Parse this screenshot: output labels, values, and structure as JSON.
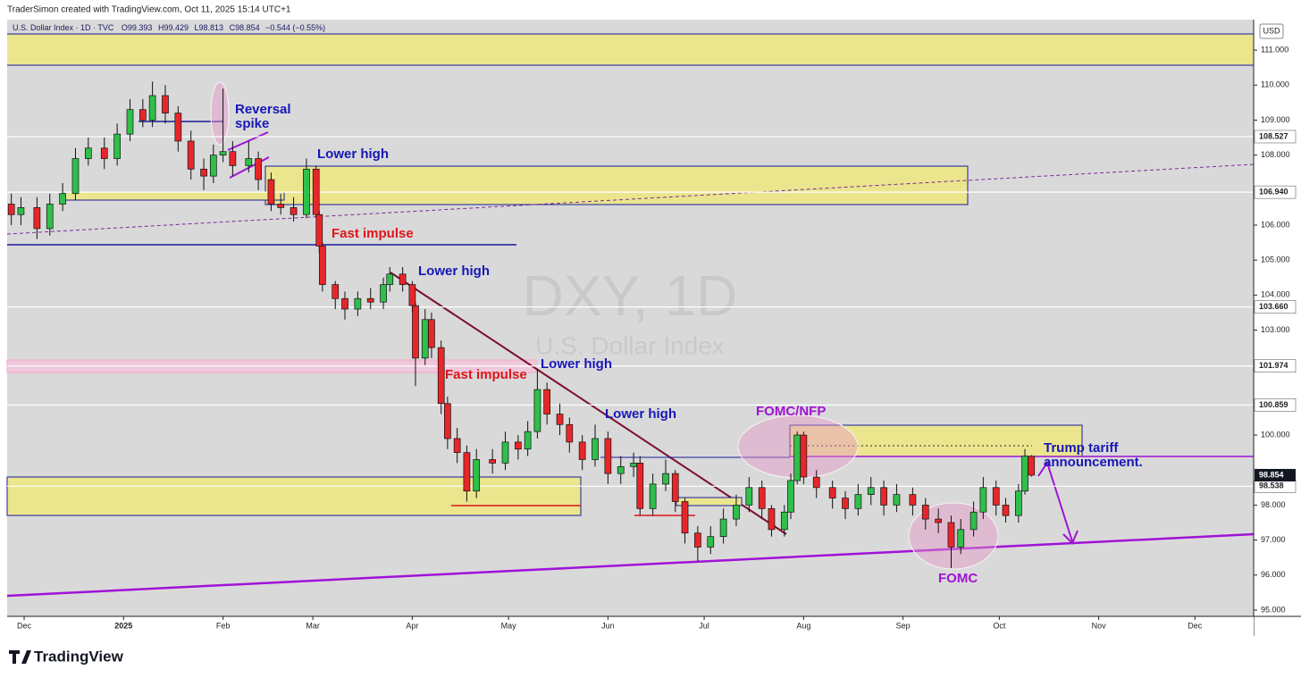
{
  "header": {
    "attribution": "TraderSimon created with TradingView.com, Oct 11, 2025 15:14 UTC+1",
    "logo": "TradingView"
  },
  "chart_data": {
    "type": "candlestick",
    "title": "U.S. Dollar Index · 1D · TVC",
    "legend_letters": [
      "O",
      "H",
      "L",
      "C"
    ],
    "change": "−0.544 (−0.55%)",
    "currency": "USD",
    "watermark": {
      "symbol": "DXY, 1D",
      "name": "U.S. Dollar Index"
    },
    "up_color": "#2fbf4a",
    "down_color": "#e8262a",
    "x": [
      -4,
      -1,
      4,
      8,
      12,
      16,
      20,
      25,
      29,
      33,
      37,
      40,
      44,
      48,
      52,
      56,
      59,
      62,
      65,
      70,
      73,
      77,
      80,
      84,
      88,
      91,
      92,
      93,
      97,
      100,
      104,
      108,
      112,
      114,
      118,
      121,
      122,
      125,
      127,
      130,
      132,
      135,
      138,
      141,
      146,
      150,
      154,
      157,
      160,
      163,
      167,
      170,
      174,
      178,
      182,
      186,
      190,
      192,
      196,
      200,
      203,
      206,
      210,
      214,
      218,
      222,
      226,
      230,
      233,
      237,
      239,
      241,
      243,
      247,
      252,
      256,
      260,
      264,
      268,
      272,
      277,
      281,
      285,
      289,
      292,
      296,
      299,
      303,
      306,
      310,
      312,
      314
    ],
    "open": [
      106.6,
      106.3,
      106.5,
      105.9,
      106.6,
      106.9,
      107.9,
      108.2,
      107.9,
      108.6,
      109.3,
      109.0,
      109.7,
      109.2,
      108.4,
      107.6,
      107.4,
      108.0,
      108.1,
      107.7,
      107.9,
      107.3,
      106.6,
      106.5,
      106.3,
      107.6,
      106.3,
      105.4,
      104.3,
      103.9,
      103.6,
      103.9,
      103.8,
      104.3,
      104.6,
      104.3,
      103.7,
      102.2,
      103.3,
      102.5,
      100.9,
      99.9,
      99.5,
      98.4,
      99.3,
      99.2,
      99.8,
      99.6,
      100.1,
      101.3,
      100.6,
      100.3,
      99.8,
      99.3,
      99.9,
      98.9,
      99.1,
      99.2,
      97.9,
      98.6,
      98.9,
      98.1,
      97.2,
      96.8,
      97.1,
      97.6,
      98.0,
      98.5,
      97.9,
      97.3,
      97.8,
      98.7,
      100.0,
      98.8,
      98.5,
      98.2,
      97.9,
      98.3,
      98.5,
      98.0,
      98.3,
      98.0,
      97.6,
      97.5,
      96.8,
      97.3,
      97.8,
      98.5,
      98.0,
      97.7,
      98.4,
      99.393
    ],
    "high": [
      106.9,
      106.8,
      106.8,
      106.9,
      107.2,
      108.2,
      108.5,
      108.5,
      108.9,
      109.6,
      109.6,
      110.1,
      110.0,
      109.4,
      108.7,
      107.9,
      108.3,
      109.9,
      108.4,
      108.4,
      108.1,
      107.5,
      106.9,
      106.8,
      107.9,
      107.7,
      106.4,
      105.5,
      104.4,
      104.1,
      104.1,
      104.2,
      104.5,
      104.8,
      104.8,
      104.4,
      103.8,
      103.6,
      103.5,
      102.7,
      101.1,
      100.2,
      99.7,
      99.6,
      99.6,
      100.1,
      100.0,
      100.4,
      101.9,
      101.5,
      100.9,
      100.5,
      100.0,
      100.3,
      100.1,
      99.4,
      99.5,
      99.4,
      98.9,
      99.3,
      99.0,
      98.2,
      97.4,
      97.4,
      97.9,
      98.3,
      98.8,
      98.7,
      98.0,
      98.0,
      98.9,
      100.1,
      100.1,
      99.0,
      98.7,
      98.4,
      98.6,
      98.8,
      98.7,
      98.6,
      98.5,
      98.2,
      97.9,
      97.7,
      97.6,
      98.1,
      98.8,
      98.7,
      98.2,
      98.6,
      99.6,
      99.429
    ],
    "low": [
      106.0,
      106.0,
      105.6,
      105.7,
      106.4,
      106.7,
      107.7,
      107.6,
      107.7,
      108.4,
      108.8,
      108.8,
      108.9,
      108.1,
      107.3,
      107.0,
      107.2,
      107.8,
      107.4,
      107.5,
      107.0,
      106.4,
      106.3,
      106.1,
      106.2,
      106.2,
      105.2,
      104.1,
      103.6,
      103.3,
      103.4,
      103.6,
      103.6,
      104.1,
      104.1,
      103.5,
      101.4,
      102.0,
      102.2,
      100.6,
      99.6,
      99.2,
      98.1,
      98.2,
      98.9,
      99.0,
      99.3,
      99.4,
      99.9,
      100.3,
      100.0,
      99.5,
      99.0,
      99.1,
      98.6,
      98.6,
      98.8,
      97.7,
      97.7,
      98.4,
      97.8,
      96.9,
      96.4,
      96.6,
      96.9,
      97.4,
      97.8,
      97.6,
      97.1,
      97.1,
      97.6,
      98.6,
      98.6,
      98.2,
      97.9,
      97.6,
      97.7,
      98.0,
      97.7,
      97.8,
      97.7,
      97.3,
      97.2,
      96.2,
      96.6,
      97.1,
      97.6,
      97.7,
      97.5,
      97.5,
      98.3,
      98.813
    ],
    "close": [
      106.3,
      106.5,
      105.9,
      106.6,
      106.9,
      107.9,
      108.2,
      107.9,
      108.6,
      109.3,
      109.0,
      109.7,
      109.2,
      108.4,
      107.6,
      107.4,
      108.0,
      108.1,
      107.7,
      107.9,
      107.3,
      106.6,
      106.5,
      106.3,
      107.6,
      106.3,
      105.4,
      104.3,
      103.9,
      103.6,
      103.9,
      103.8,
      104.3,
      104.6,
      104.3,
      103.7,
      102.2,
      103.3,
      102.5,
      100.9,
      99.9,
      99.5,
      98.4,
      99.3,
      99.2,
      99.8,
      99.6,
      100.1,
      101.3,
      100.6,
      100.3,
      99.8,
      99.3,
      99.9,
      98.9,
      99.1,
      99.2,
      97.9,
      98.6,
      98.9,
      98.1,
      97.2,
      96.8,
      97.1,
      97.6,
      98.0,
      98.5,
      97.9,
      97.3,
      97.8,
      98.7,
      100.0,
      98.8,
      98.5,
      98.2,
      97.9,
      98.3,
      98.5,
      98.0,
      98.3,
      98.0,
      97.6,
      97.5,
      96.8,
      97.3,
      97.8,
      98.5,
      98.0,
      97.7,
      98.4,
      99.4,
      98.854
    ],
    "xlim": [
      -5.3,
      383.3
    ],
    "xticks": [
      {
        "value": 0,
        "label": "Dec"
      },
      {
        "value": 31,
        "label": "2025"
      },
      {
        "value": 62,
        "label": "Feb"
      },
      {
        "value": 90,
        "label": "Mar"
      },
      {
        "value": 121,
        "label": "Apr"
      },
      {
        "value": 151,
        "label": "May"
      },
      {
        "value": 182,
        "label": "Jun"
      },
      {
        "value": 212,
        "label": "Jul"
      },
      {
        "value": 243,
        "label": "Aug"
      },
      {
        "value": 274,
        "label": "Sep"
      },
      {
        "value": 304,
        "label": "Oct"
      },
      {
        "value": 335,
        "label": "Nov"
      },
      {
        "value": 365,
        "label": "Dec"
      }
    ],
    "ylim": [
      94.82,
      111.87
    ],
    "yticks": [
      {
        "value": 95,
        "label": "95.000"
      },
      {
        "value": 96,
        "label": "96.000"
      },
      {
        "value": 97,
        "label": "97.000"
      },
      {
        "value": 98,
        "label": "98.000"
      },
      {
        "value": 100,
        "label": "100.000"
      },
      {
        "value": 103,
        "label": "103.000"
      },
      {
        "value": 104,
        "label": "104.000"
      },
      {
        "value": 105,
        "label": "105.000"
      },
      {
        "value": 106,
        "label": "106.000"
      },
      {
        "value": 108,
        "label": "108.000"
      },
      {
        "value": 109,
        "label": "109.000"
      },
      {
        "value": 110,
        "label": "110.000"
      },
      {
        "value": 111,
        "label": "111.000"
      }
    ],
    "levels": [
      108.527,
      {
        "value": 106.94,
        "label": "106.940"
      },
      {
        "value": 103.66,
        "label": "103.660"
      },
      101.974,
      100.859,
      98.538
    ],
    "annotations": [
      "Reversal",
      "spike",
      "Lower high",
      "Fast impulse",
      "Lower high",
      "Fast impulse",
      "Lower high",
      "Lower high",
      "FOMC/NFP",
      "Trump tariff",
      "announcement.",
      "FOMC"
    ]
  }
}
